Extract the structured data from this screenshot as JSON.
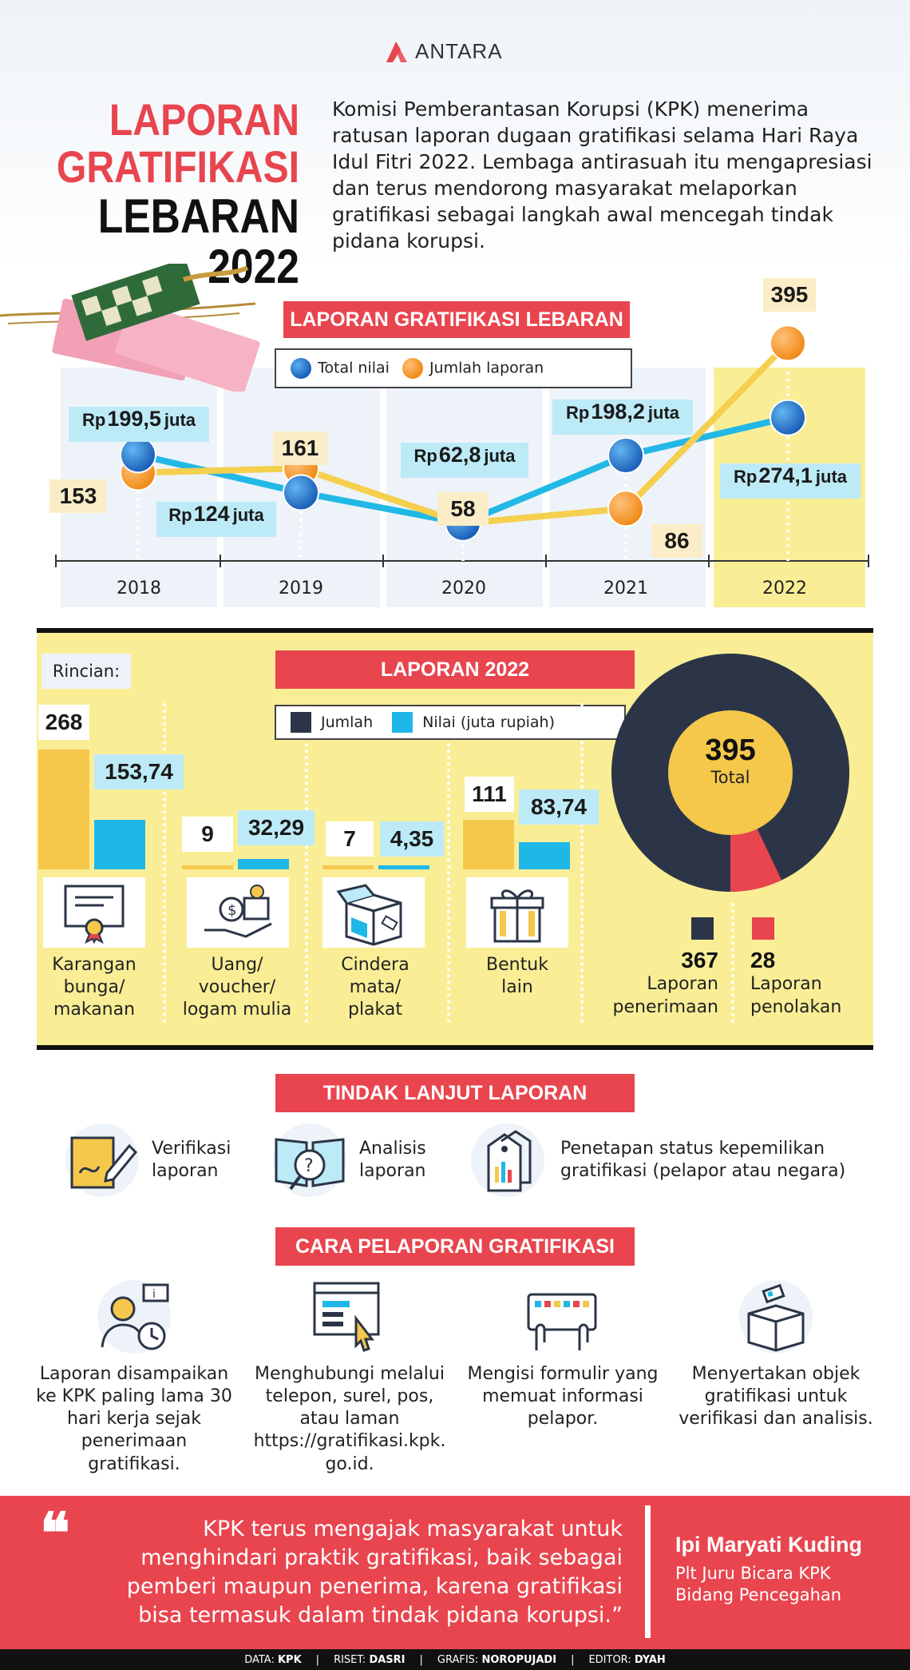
{
  "brand": {
    "name": "ANTARA"
  },
  "headline": {
    "line1": "LAPORAN",
    "line2": "GRATIFIKASI",
    "line3": "LEBARAN 2022"
  },
  "intro": "Komisi Pemberantasan Korupsi (KPK) menerima ratusan laporan dugaan gratifikasi selama Hari Raya Idul Fitri 2022. Lembaga antirasuah itu mengapresiasi dan terus mendorong masyarakat melaporkan gratifikasi sebagai langkah awal mencegah tindak pidana korupsi.",
  "colors": {
    "accent_red": "#e8454f",
    "yellow": "#f9ee96",
    "navy": "#2b3547",
    "cyan": "#1fb7e8",
    "orange": "#f5a13a",
    "blue": "#1b5fb8"
  },
  "trend": {
    "banner": "LAPORAN GRATIFIKASI LEBARAN",
    "legend": {
      "blue": "Total nilai",
      "orange": "Jumlah laporan"
    },
    "years": [
      "2018",
      "2019",
      "2020",
      "2021",
      "2022"
    ],
    "nilai_labels": [
      {
        "rp": "Rp",
        "value": "199,5",
        "unit": "juta"
      },
      {
        "rp": "Rp",
        "value": "124",
        "unit": "juta"
      },
      {
        "rp": "Rp",
        "value": "62,8",
        "unit": "juta"
      },
      {
        "rp": "Rp",
        "value": "198,2",
        "unit": "juta"
      },
      {
        "rp": "Rp",
        "value": "274,1",
        "unit": "juta"
      }
    ],
    "jumlah_labels": [
      "153",
      "161",
      "58",
      "86",
      "395"
    ]
  },
  "chart_data": {
    "type": "line",
    "x": [
      "2018",
      "2019",
      "2020",
      "2021",
      "2022"
    ],
    "series": [
      {
        "name": "Total nilai",
        "values": [
          199.5,
          124,
          62.8,
          198.2,
          274.1
        ]
      },
      {
        "name": "Jumlah laporan",
        "values": [
          153,
          161,
          58,
          86,
          395
        ]
      }
    ]
  },
  "laporan2022": {
    "rincian": "Rincian:",
    "banner": "LAPORAN 2022",
    "legend": {
      "jumlah": "Jumlah",
      "nilai": "Nilai (juta rupiah)"
    },
    "categories": [
      {
        "jumlah": "268",
        "nilai": "153,74",
        "jumlah_value": 268,
        "nilai_value": 153.74,
        "label": [
          "Karangan",
          "bunga/",
          "makanan"
        ],
        "icon": "certificate-icon"
      },
      {
        "jumlah": "9",
        "nilai": "32,29",
        "jumlah_value": 9,
        "nilai_value": 32.29,
        "label": [
          "Uang/",
          "voucher/",
          "logam mulia"
        ],
        "icon": "money-icon"
      },
      {
        "jumlah": "7",
        "nilai": "4,35",
        "jumlah_value": 7,
        "nilai_value": 4.35,
        "label": [
          "Cindera",
          "mata/",
          "plakat"
        ],
        "icon": "gift-box-icon"
      },
      {
        "jumlah": "111",
        "nilai": "83,74",
        "jumlah_value": 111,
        "nilai_value": 83.74,
        "label": [
          "Bentuk",
          "lain"
        ],
        "icon": "present-icon"
      }
    ],
    "donut": {
      "total": "395",
      "total_label": "Total",
      "penerimaan": {
        "value": "367",
        "count": 367,
        "label1": "Laporan",
        "label2": "penerimaan"
      },
      "penolakan": {
        "value": "28",
        "count": 28,
        "label1": "Laporan",
        "label2": "penolakan"
      }
    }
  },
  "tindak_lanjut": {
    "banner": "TINDAK LANJUT LAPORAN",
    "steps": [
      {
        "line1": "Verifikasi",
        "line2": "laporan",
        "icon": "document-pen-icon"
      },
      {
        "line1": "Analisis",
        "line2": "laporan",
        "icon": "book-search-icon"
      },
      {
        "line1": "Penetapan status kepemilikan",
        "line2": "gratifikasi (pelapor atau negara)",
        "icon": "price-tag-icon"
      }
    ]
  },
  "cara": {
    "banner": "CARA PELAPORAN GRATIFIKASI",
    "steps": [
      {
        "lines": [
          "Laporan disampaikan",
          "ke KPK paling lama 30",
          "hari kerja sejak",
          "penerimaan",
          "gratifikasi."
        ],
        "icon": "person-clock-icon"
      },
      {
        "lines": [
          "Menghubungi melalui",
          "telepon, surel, pos,",
          "atau laman",
          "https://gratifikasi.kpk.",
          "go.id."
        ],
        "icon": "browser-click-icon"
      },
      {
        "lines": [
          "Mengisi formulir yang",
          "memuat informasi",
          "pelapor."
        ],
        "icon": "keyboard-icon"
      },
      {
        "lines": [
          "Menyertakan objek",
          "gratifikasi untuk",
          "verifikasi dan analisis."
        ],
        "icon": "package-icon"
      }
    ]
  },
  "quote": {
    "text": "KPK terus mengajak masyarakat untuk menghindari praktik gratifikasi, baik sebagai pemberi maupun penerima, karena gratifikasi bisa termasuk dalam tindak pidana korupsi.”",
    "name": "Ipi Maryati Kuding",
    "role1": "Plt Juru Bicara KPK",
    "role2": "Bidang Pencegahan"
  },
  "footer": {
    "data_label": "DATA:",
    "data_value": "KPK",
    "riset_label": "RISET:",
    "riset_value": "DASRI",
    "grafis_label": "GRAFIS:",
    "grafis_value": "NOROPUJADI",
    "editor_label": "EDITOR:",
    "editor_value": "DYAH",
    "sep": "|"
  }
}
